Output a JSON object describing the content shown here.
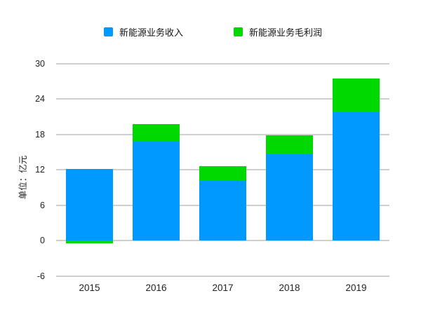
{
  "legend": {
    "items": [
      {
        "label": "新能源业务收入",
        "color": "#0099ff",
        "swatch_icon": "blue-square-icon"
      },
      {
        "label": "新能源业务毛利润",
        "color": "#00d900",
        "swatch_icon": "green-square-icon"
      }
    ]
  },
  "chart_data": {
    "type": "bar",
    "stacked": true,
    "title": "",
    "xlabel": "",
    "ylabel": "单位：亿元",
    "categories": [
      "2015",
      "2016",
      "2017",
      "2018",
      "2019"
    ],
    "series": [
      {
        "name": "新能源业务收入",
        "color": "#0099ff",
        "values": [
          12.1,
          16.8,
          10.1,
          14.7,
          21.8
        ]
      },
      {
        "name": "新能源业务毛利润",
        "color": "#00d900",
        "values": [
          -0.5,
          3.0,
          2.5,
          3.2,
          5.7
        ]
      }
    ],
    "ylim": [
      -6,
      30
    ],
    "yticks": [
      30,
      24,
      18,
      12,
      6,
      0,
      -6
    ],
    "grid": true,
    "gridline_color": "#cfcfcf",
    "legend_position": "top"
  }
}
